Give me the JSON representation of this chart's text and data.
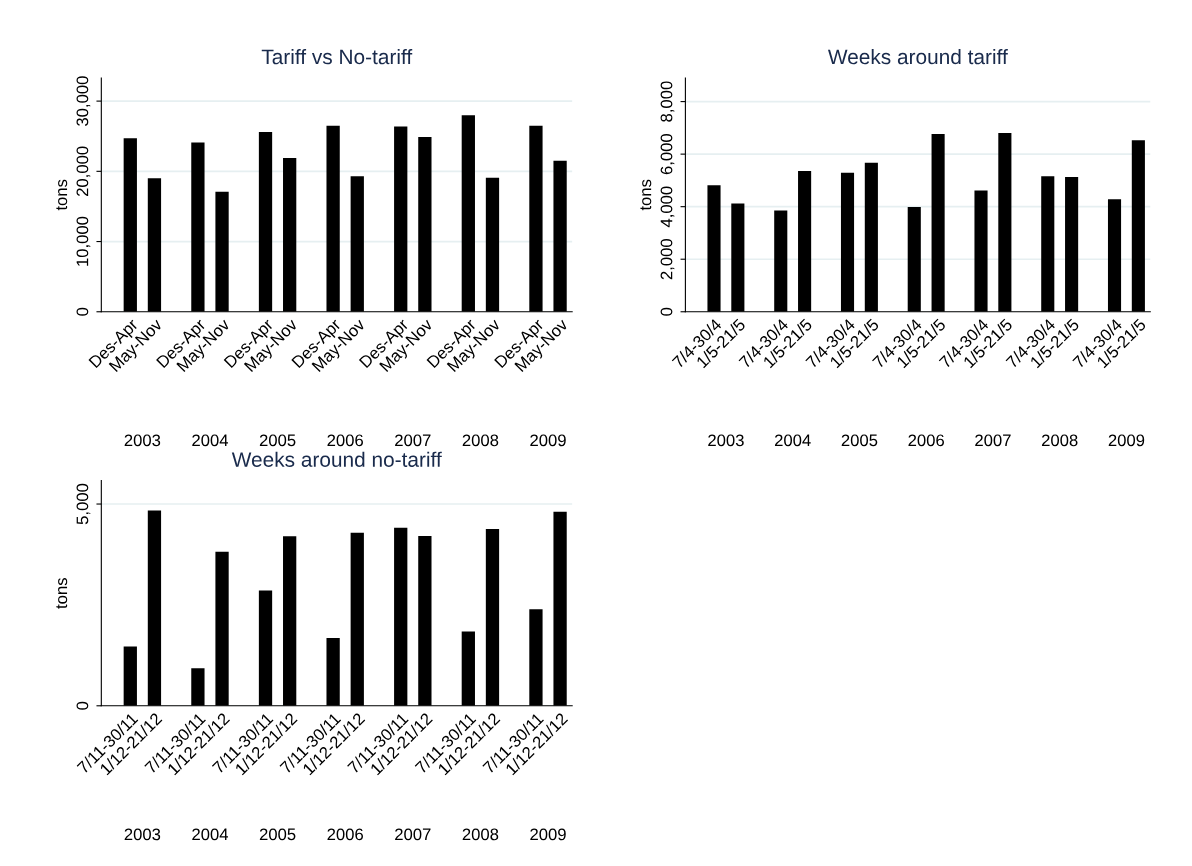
{
  "chart_data": [
    {
      "type": "bar",
      "title": "Tariff vs No-tariff",
      "ylabel": "tons",
      "categories": [
        "Des-Apr",
        "May-Nov",
        "Des-Apr",
        "May-Nov",
        "Des-Apr",
        "May-Nov",
        "Des-Apr",
        "May-Nov",
        "Des-Apr",
        "May-Nov",
        "Des-Apr",
        "May-Nov",
        "Des-Apr",
        "May-Nov"
      ],
      "values": [
        24700,
        19000,
        24100,
        17100,
        25600,
        21900,
        26500,
        19300,
        26400,
        24900,
        28000,
        19100,
        26500,
        21500
      ],
      "color": "#000000",
      "ylim": [
        0,
        33300
      ],
      "yticks": [
        0,
        {
          "value": 10000,
          "label": "10,000"
        },
        {
          "value": 20000,
          "label": "20,000"
        },
        {
          "value": 30000,
          "label": "30,000"
        }
      ],
      "grid": "y",
      "annotations": [
        "2003",
        "2004",
        "2005",
        "2006",
        "2007",
        "2008",
        "2009"
      ]
    },
    {
      "type": "bar",
      "title": "Weeks around tariff",
      "ylabel": "tons",
      "categories": [
        "7/4-30/4",
        "1/5-21/5",
        "7/4-30/4",
        "1/5-21/5",
        "7/4-30/4",
        "1/5-21/5",
        "7/4-30/4",
        "1/5-21/5",
        "7/4-30/4",
        "1/5-21/5",
        "7/4-30/4",
        "1/5-21/5",
        "7/4-30/4",
        "1/5-21/5"
      ],
      "values": [
        4820,
        4120,
        3850,
        5360,
        5290,
        5670,
        3990,
        6770,
        4620,
        6800,
        5160,
        5130,
        4280,
        6530
      ],
      "color": "#000000",
      "ylim": [
        0,
        8900
      ],
      "yticks": [
        0,
        {
          "value": 2000,
          "label": "2,000"
        },
        {
          "value": 4000,
          "label": "4,000"
        },
        {
          "value": 6000,
          "label": "6,000"
        },
        {
          "value": 8000,
          "label": "8,000"
        }
      ],
      "grid": "y",
      "annotations": [
        "2003",
        "2004",
        "2005",
        "2006",
        "2007",
        "2008",
        "2009"
      ]
    },
    {
      "type": "bar",
      "title": "Weeks around no-tariff",
      "ylabel": "tons",
      "categories": [
        "7/11-30/11",
        "1/12-21/12",
        "7/11-30/11",
        "1/12-21/12",
        "7/11-30/11",
        "1/12-21/12",
        "7/11-30/11",
        "1/12-21/12",
        "7/11-30/11",
        "1/12-21/12",
        "7/11-30/11",
        "1/12-21/12",
        "7/11-30/11",
        "1/12-21/12"
      ],
      "values": [
        1470,
        4840,
        930,
        3820,
        2860,
        4200,
        1680,
        4290,
        4410,
        4210,
        1840,
        4380,
        2390,
        4810
      ],
      "color": "#000000",
      "ylim": [
        0,
        5580
      ],
      "yticks": [
        0,
        {
          "value": 5000,
          "label": "5,000"
        }
      ],
      "grid": "y",
      "annotations": [
        "2003",
        "2004",
        "2005",
        "2006",
        "2007",
        "2008",
        "2009"
      ]
    }
  ]
}
